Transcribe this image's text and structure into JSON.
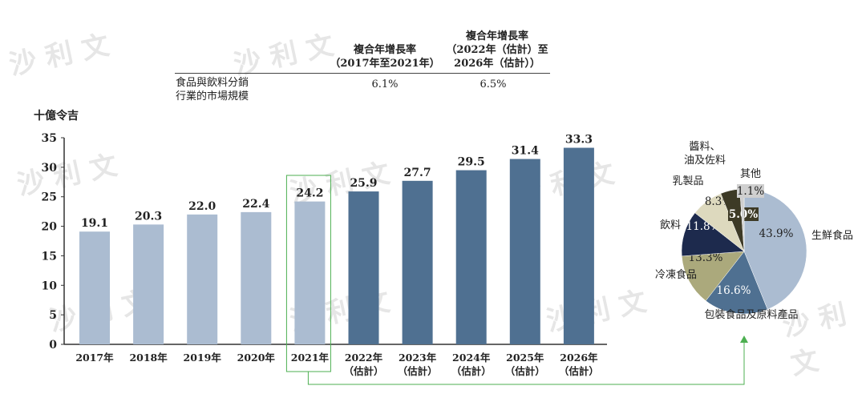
{
  "watermark": "沙利文",
  "cagr_table": {
    "col1_line1": "複合年增長率",
    "col1_line2": "（2017年至2021年）",
    "col2_line1": "複合年增長率",
    "col2_line2": "（2022年（估計）至",
    "col2_line3": "2026年（估計））",
    "row_label_line1": "食品與飲料分銷",
    "row_label_line2": "行業的市場規模",
    "val1": "6.1%",
    "val2": "6.5%"
  },
  "chart_data": [
    {
      "type": "bar",
      "ylabel": "十億令吉",
      "ylim": [
        0,
        35
      ],
      "yticks": [
        "0",
        "5",
        "10",
        "15",
        "20",
        "25",
        "30",
        "35"
      ],
      "categories": [
        [
          "2017年",
          ""
        ],
        [
          "2018年",
          ""
        ],
        [
          "2019年",
          ""
        ],
        [
          "2020年",
          ""
        ],
        [
          "2021年",
          ""
        ],
        [
          "2022年",
          "（估計）"
        ],
        [
          "2023年",
          "（估計）"
        ],
        [
          "2024年",
          "（估計）"
        ],
        [
          "2025年",
          "（估計）"
        ],
        [
          "2026年",
          "（估計）"
        ]
      ],
      "values": [
        19.1,
        20.3,
        22.0,
        22.4,
        24.2,
        25.9,
        27.7,
        29.5,
        31.4,
        33.3
      ],
      "labels": [
        "19.1",
        "20.3",
        "22.0",
        "22.4",
        "24.2",
        "25.9",
        "27.7",
        "29.5",
        "31.4",
        "33.3"
      ],
      "colors": {
        "historical": "#abbcd1",
        "forecast": "#4f7091",
        "highlight": "#4caf50"
      },
      "highlight_index": 4
    },
    {
      "type": "pie",
      "slices": [
        {
          "name": "生鮮食品",
          "value": 43.9,
          "label": "43.9%",
          "color": "#abbcd1"
        },
        {
          "name": "包裝食品及原料產品",
          "value": 16.6,
          "label": "16.6%",
          "color": "#4f7091"
        },
        {
          "name": "冷凍食品",
          "value": 13.3,
          "label": "13.3%",
          "color": "#aba97c"
        },
        {
          "name": "飲料",
          "value": 11.8,
          "label": "11.8%",
          "color": "#1d2a4d"
        },
        {
          "name": "乳製品",
          "value": 8.3,
          "label": "8.3%",
          "color": "#ddd9be"
        },
        {
          "name": "醬料、油及佐料",
          "value": 5.0,
          "label": "5.0%",
          "color": "#3d3a26"
        },
        {
          "name": "其他",
          "value": 1.1,
          "label": "1.1%",
          "color": "#cfcfcf"
        }
      ]
    }
  ]
}
